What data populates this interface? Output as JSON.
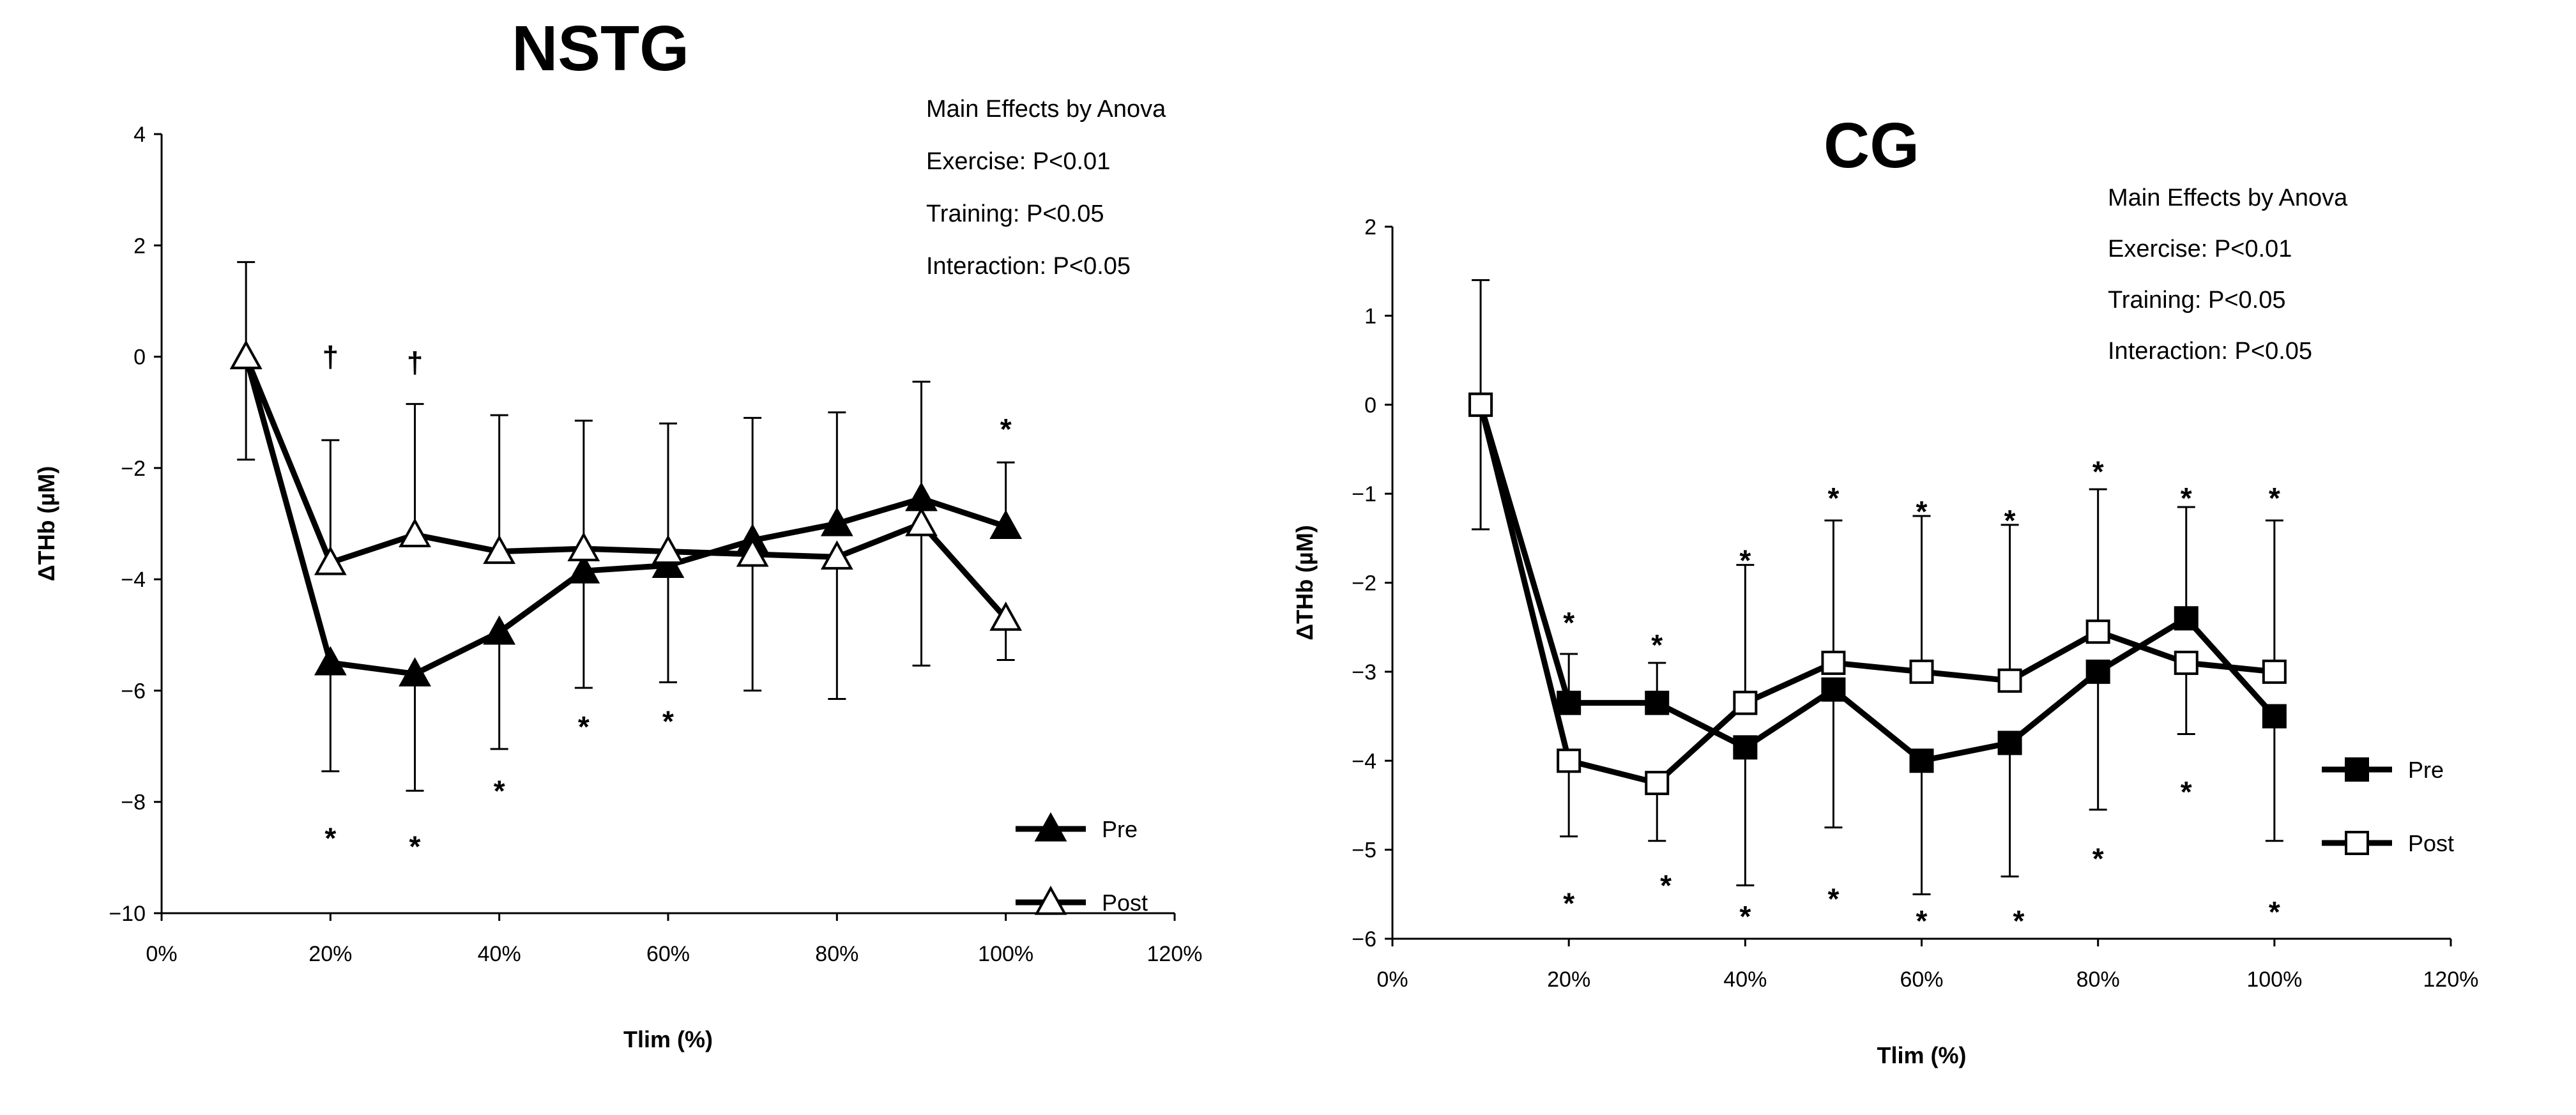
{
  "chart_data": [
    {
      "type": "line",
      "title": "NSTG",
      "xlabel": "Tlim (%)",
      "ylabel": "ΔTHb (µM)",
      "xlim": [
        0,
        120
      ],
      "ylim": [
        -10,
        4
      ],
      "xticks": [
        0,
        20,
        40,
        60,
        80,
        100,
        120
      ],
      "xtick_labels": [
        "0%",
        "20%",
        "40%",
        "60%",
        "80%",
        "100%",
        "120%"
      ],
      "yticks": [
        -10,
        -8,
        -6,
        -4,
        -2,
        0,
        2,
        4
      ],
      "ytick_labels": [
        "−10",
        "−8",
        "−6",
        "−4",
        "−2",
        "0",
        "2",
        "4"
      ],
      "marker": "triangle",
      "legend_position": "right",
      "annotation_lines": [
        "Main Effects by Anova",
        "Exercise: P<0.01",
        "Training: P<0.05",
        "Interaction: P<0.05"
      ],
      "series": [
        {
          "name": "Pre",
          "filled": true,
          "x": [
            10,
            20,
            30,
            40,
            50,
            60,
            70,
            80,
            90,
            100
          ],
          "y": [
            0,
            -5.5,
            -5.7,
            -4.95,
            -3.85,
            -3.75,
            -3.3,
            -3.0,
            -2.55,
            -3.05
          ],
          "error": [
            1.85,
            1.95,
            2.1,
            2.1,
            2.1,
            2.1,
            2.2,
            2.0,
            2.1,
            1.15
          ]
        },
        {
          "name": "Post",
          "filled": false,
          "x": [
            10,
            20,
            30,
            40,
            50,
            60,
            70,
            80,
            90,
            100
          ],
          "y": [
            0,
            -3.7,
            -3.2,
            -3.5,
            -3.45,
            -3.5,
            -3.55,
            -3.6,
            -3.0,
            -4.7
          ],
          "error": [
            1.7,
            2.2,
            2.35,
            2.45,
            2.3,
            2.3,
            2.45,
            2.55,
            2.55,
            0.75
          ]
        }
      ],
      "significance_marks": [
        {
          "text": "†",
          "x": 20,
          "y": 0
        },
        {
          "text": "†",
          "x": 30,
          "y": -0.1
        },
        {
          "text": "*",
          "x": 100,
          "y": -1.3
        },
        {
          "text": "*",
          "x": 50,
          "y": -6.65
        },
        {
          "text": "*",
          "x": 60,
          "y": -6.55
        },
        {
          "text": "*",
          "x": 40,
          "y": -7.8
        },
        {
          "text": "*",
          "x": 20,
          "y": -8.65
        },
        {
          "text": "*",
          "x": 30,
          "y": -8.8
        }
      ]
    },
    {
      "type": "line",
      "title": "CG",
      "xlabel": "Tlim (%)",
      "ylabel": "ΔTHb (µM)",
      "xlim": [
        0,
        120
      ],
      "ylim": [
        -6,
        2
      ],
      "xticks": [
        0,
        20,
        40,
        60,
        80,
        100,
        120
      ],
      "xtick_labels": [
        "0%",
        "20%",
        "40%",
        "60%",
        "80%",
        "100%",
        "120%"
      ],
      "yticks": [
        -6,
        -5,
        -4,
        -3,
        -2,
        -1,
        0,
        1,
        2
      ],
      "ytick_labels": [
        "−6",
        "−5",
        "−4",
        "−3",
        "−2",
        "−1",
        "0",
        "1",
        "2"
      ],
      "marker": "square",
      "legend_position": "right",
      "annotation_lines": [
        "Main Effects by Anova",
        "Exercise: P<0.01",
        "Training: P<0.05",
        "Interaction: P<0.05"
      ],
      "series": [
        {
          "name": "Pre",
          "filled": true,
          "x": [
            10,
            20,
            30,
            40,
            50,
            60,
            70,
            80,
            90,
            100
          ],
          "y": [
            0,
            -3.35,
            -3.35,
            -3.85,
            -3.2,
            -4.0,
            -3.8,
            -3.0,
            -2.4,
            -3.5
          ],
          "error": [
            1.4,
            0.55,
            0.45,
            1.55,
            1.55,
            1.5,
            1.5,
            1.55,
            1.25,
            1.4
          ]
        },
        {
          "name": "Post",
          "filled": false,
          "x": [
            10,
            20,
            30,
            40,
            50,
            60,
            70,
            80,
            90,
            100
          ],
          "y": [
            0,
            -4.0,
            -4.25,
            -3.35,
            -2.9,
            -3.0,
            -3.1,
            -2.55,
            -2.9,
            -3.0
          ],
          "error": [
            1.4,
            0.85,
            0.65,
            1.55,
            1.6,
            1.75,
            1.75,
            1.6,
            0.8,
            1.7
          ]
        }
      ],
      "significance_marks": [
        {
          "text": "*",
          "x": 20,
          "y": -2.45
        },
        {
          "text": "*",
          "x": 30,
          "y": -2.7
        },
        {
          "text": "*",
          "x": 40,
          "y": -1.75
        },
        {
          "text": "*",
          "x": 50,
          "y": -1.05
        },
        {
          "text": "*",
          "x": 60,
          "y": -1.2
        },
        {
          "text": "*",
          "x": 70,
          "y": -1.3
        },
        {
          "text": "*",
          "x": 80,
          "y": -0.75
        },
        {
          "text": "*",
          "x": 90,
          "y": -1.05
        },
        {
          "text": "*",
          "x": 100,
          "y": -1.05
        },
        {
          "text": "*",
          "x": 20,
          "y": -5.6
        },
        {
          "text": "*",
          "x": 31,
          "y": -5.4
        },
        {
          "text": "*",
          "x": 40,
          "y": -5.75
        },
        {
          "text": "*",
          "x": 50,
          "y": -5.55
        },
        {
          "text": "*",
          "x": 60,
          "y": -5.8
        },
        {
          "text": "*",
          "x": 71,
          "y": -5.8
        },
        {
          "text": "*",
          "x": 80,
          "y": -5.1
        },
        {
          "text": "*",
          "x": 90,
          "y": -4.35
        },
        {
          "text": "*",
          "x": 100,
          "y": -5.7
        }
      ]
    }
  ]
}
